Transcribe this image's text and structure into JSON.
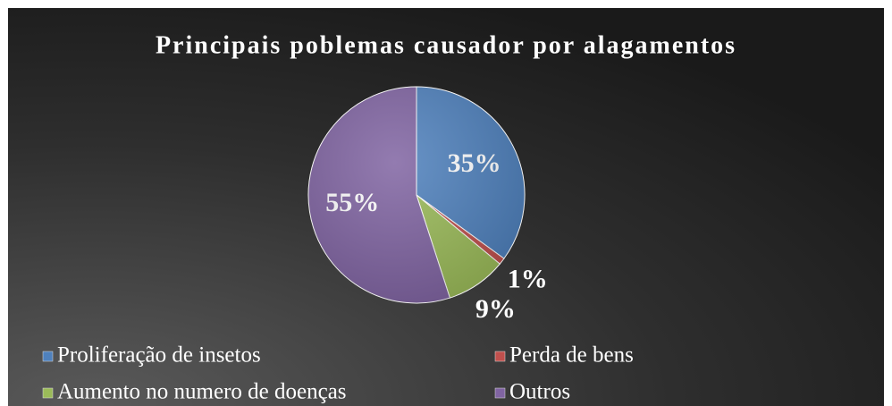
{
  "chart_data": {
    "type": "pie",
    "title": "Principais poblemas causador por alagamentos",
    "categories": [
      "Proliferação de insetos",
      "Perda de bens",
      "Aumento no numero de doenças",
      "Outros"
    ],
    "values": [
      35,
      1,
      9,
      55
    ],
    "value_labels": [
      "35%",
      "1%",
      "9%",
      "55%"
    ],
    "colors": [
      "#4f81bd",
      "#c0504d",
      "#9bbb59",
      "#8064a2"
    ],
    "legend": "bottom"
  }
}
